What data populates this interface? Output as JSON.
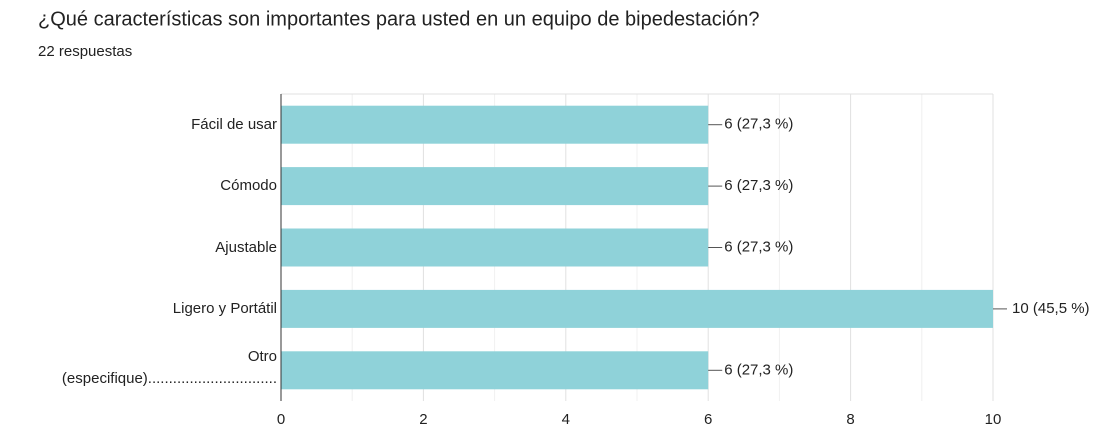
{
  "chart_data": {
    "type": "bar",
    "orientation": "horizontal",
    "title": "¿Qué características son importantes para usted en un equipo de bipedestación?",
    "subtitle": "22 respuestas",
    "categories": [
      "Fácil de usar",
      "Cómodo",
      "Ajustable",
      "Ligero y Portátil",
      "Otro (especifique)..............................."
    ],
    "values": [
      6,
      6,
      6,
      10,
      6
    ],
    "value_labels": [
      "6 (27,3 %)",
      "6 (27,3 %)",
      "6 (27,3 %)",
      "10 (45,5 %)",
      "6 (27,3 %)"
    ],
    "color": "#8fd2d9",
    "xlim": [
      0,
      10
    ],
    "xticks": [
      0,
      2,
      4,
      6,
      8,
      10
    ],
    "xminorticks": [
      1,
      3,
      5,
      7,
      9
    ],
    "grid": true
  }
}
